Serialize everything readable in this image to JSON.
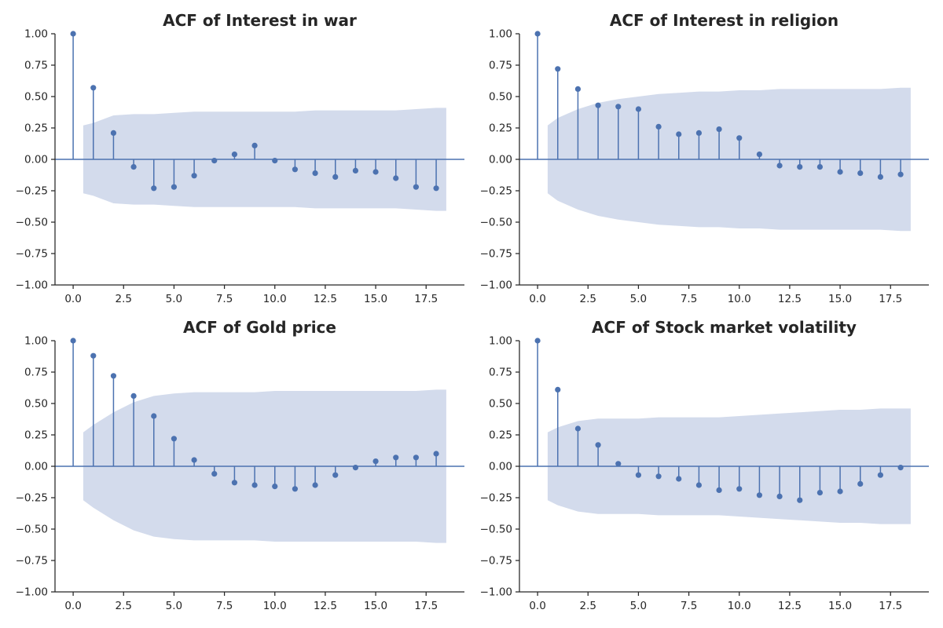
{
  "chart_data": [
    {
      "type": "stem",
      "title": "ACF of Interest in war",
      "xlabel": "",
      "ylabel": "",
      "xlim": [
        -0.9,
        19.4
      ],
      "ylim": [
        -1.0,
        1.0
      ],
      "xticks": [
        0.0,
        2.5,
        5.0,
        7.5,
        10.0,
        12.5,
        15.0,
        17.5
      ],
      "xtick_labels": [
        "0.0",
        "2.5",
        "5.0",
        "7.5",
        "10.0",
        "12.5",
        "15.0",
        "17.5"
      ],
      "yticks": [
        1.0,
        0.75,
        0.5,
        0.25,
        0.0,
        -0.25,
        -0.5,
        -0.75,
        -1.0
      ],
      "ytick_labels": [
        "1.00",
        "0.75",
        "0.50",
        "0.25",
        "0.00",
        "−0.25",
        "−0.50",
        "−0.75",
        "−1.00"
      ],
      "lags": [
        0,
        1,
        2,
        3,
        4,
        5,
        6,
        7,
        8,
        9,
        10,
        11,
        12,
        13,
        14,
        15,
        16,
        17,
        18
      ],
      "values": [
        1.0,
        0.57,
        0.21,
        -0.06,
        -0.23,
        -0.22,
        -0.13,
        -0.01,
        0.04,
        0.11,
        -0.01,
        -0.08,
        -0.11,
        -0.14,
        -0.09,
        -0.1,
        -0.15,
        -0.22,
        -0.23
      ],
      "conf_x": [
        0.5,
        1,
        2,
        3,
        4,
        5,
        6,
        7,
        8,
        9,
        10,
        11,
        12,
        13,
        14,
        15,
        16,
        17,
        18,
        18.5
      ],
      "conf_upper": [
        0.27,
        0.29,
        0.35,
        0.36,
        0.36,
        0.37,
        0.38,
        0.38,
        0.38,
        0.38,
        0.38,
        0.38,
        0.39,
        0.39,
        0.39,
        0.39,
        0.39,
        0.4,
        0.41,
        0.41
      ],
      "grid": false,
      "line_color": "#4c72b0",
      "band_color": "#d3dbec"
    },
    {
      "type": "stem",
      "title": "ACF of Interest in religion",
      "xlabel": "",
      "ylabel": "",
      "xlim": [
        -0.9,
        19.4
      ],
      "ylim": [
        -1.0,
        1.0
      ],
      "xticks": [
        0.0,
        2.5,
        5.0,
        7.5,
        10.0,
        12.5,
        15.0,
        17.5
      ],
      "xtick_labels": [
        "0.0",
        "2.5",
        "5.0",
        "7.5",
        "10.0",
        "12.5",
        "15.0",
        "17.5"
      ],
      "yticks": [
        1.0,
        0.75,
        0.5,
        0.25,
        0.0,
        -0.25,
        -0.5,
        -0.75,
        -1.0
      ],
      "ytick_labels": [
        "1.00",
        "0.75",
        "0.50",
        "0.25",
        "0.00",
        "−0.25",
        "−0.50",
        "−0.75",
        "−1.00"
      ],
      "lags": [
        0,
        1,
        2,
        3,
        4,
        5,
        6,
        7,
        8,
        9,
        10,
        11,
        12,
        13,
        14,
        15,
        16,
        17,
        18
      ],
      "values": [
        1.0,
        0.72,
        0.56,
        0.43,
        0.42,
        0.4,
        0.26,
        0.2,
        0.21,
        0.24,
        0.17,
        0.04,
        -0.05,
        -0.06,
        -0.06,
        -0.1,
        -0.11,
        -0.14,
        -0.12
      ],
      "conf_x": [
        0.5,
        1,
        2,
        3,
        4,
        5,
        6,
        7,
        8,
        9,
        10,
        11,
        12,
        13,
        14,
        15,
        16,
        17,
        18,
        18.5
      ],
      "conf_upper": [
        0.27,
        0.33,
        0.4,
        0.45,
        0.48,
        0.5,
        0.52,
        0.53,
        0.54,
        0.54,
        0.55,
        0.55,
        0.56,
        0.56,
        0.56,
        0.56,
        0.56,
        0.56,
        0.57,
        0.57
      ],
      "grid": false,
      "line_color": "#4c72b0",
      "band_color": "#d3dbec"
    },
    {
      "type": "stem",
      "title": "ACF of Gold price",
      "xlabel": "",
      "ylabel": "",
      "xlim": [
        -0.9,
        19.4
      ],
      "ylim": [
        -1.0,
        1.0
      ],
      "xticks": [
        0.0,
        2.5,
        5.0,
        7.5,
        10.0,
        12.5,
        15.0,
        17.5
      ],
      "xtick_labels": [
        "0.0",
        "2.5",
        "5.0",
        "7.5",
        "10.0",
        "12.5",
        "15.0",
        "17.5"
      ],
      "yticks": [
        1.0,
        0.75,
        0.5,
        0.25,
        0.0,
        -0.25,
        -0.5,
        -0.75,
        -1.0
      ],
      "ytick_labels": [
        "1.00",
        "0.75",
        "0.50",
        "0.25",
        "0.00",
        "−0.25",
        "−0.50",
        "−0.75",
        "−1.00"
      ],
      "lags": [
        0,
        1,
        2,
        3,
        4,
        5,
        6,
        7,
        8,
        9,
        10,
        11,
        12,
        13,
        14,
        15,
        16,
        17,
        18
      ],
      "values": [
        1.0,
        0.88,
        0.72,
        0.56,
        0.4,
        0.22,
        0.05,
        -0.06,
        -0.13,
        -0.15,
        -0.16,
        -0.18,
        -0.15,
        -0.07,
        -0.01,
        0.04,
        0.07,
        0.07,
        0.1
      ],
      "conf_x": [
        0.5,
        1,
        2,
        3,
        4,
        5,
        6,
        7,
        8,
        9,
        10,
        11,
        12,
        13,
        14,
        15,
        16,
        17,
        18,
        18.5
      ],
      "conf_upper": [
        0.27,
        0.33,
        0.43,
        0.51,
        0.56,
        0.58,
        0.59,
        0.59,
        0.59,
        0.59,
        0.6,
        0.6,
        0.6,
        0.6,
        0.6,
        0.6,
        0.6,
        0.6,
        0.61,
        0.61
      ],
      "grid": false,
      "line_color": "#4c72b0",
      "band_color": "#d3dbec"
    },
    {
      "type": "stem",
      "title": "ACF of Stock market volatility",
      "xlabel": "",
      "ylabel": "",
      "xlim": [
        -0.9,
        19.4
      ],
      "ylim": [
        -1.0,
        1.0
      ],
      "xticks": [
        0.0,
        2.5,
        5.0,
        7.5,
        10.0,
        12.5,
        15.0,
        17.5
      ],
      "xtick_labels": [
        "0.0",
        "2.5",
        "5.0",
        "7.5",
        "10.0",
        "12.5",
        "15.0",
        "17.5"
      ],
      "yticks": [
        1.0,
        0.75,
        0.5,
        0.25,
        0.0,
        -0.25,
        -0.5,
        -0.75,
        -1.0
      ],
      "ytick_labels": [
        "1.00",
        "0.75",
        "0.50",
        "0.25",
        "0.00",
        "−0.25",
        "−0.50",
        "−0.75",
        "−1.00"
      ],
      "lags": [
        0,
        1,
        2,
        3,
        4,
        5,
        6,
        7,
        8,
        9,
        10,
        11,
        12,
        13,
        14,
        15,
        16,
        17,
        18
      ],
      "values": [
        1.0,
        0.61,
        0.3,
        0.17,
        0.02,
        -0.07,
        -0.08,
        -0.1,
        -0.15,
        -0.19,
        -0.18,
        -0.23,
        -0.24,
        -0.27,
        -0.21,
        -0.2,
        -0.14,
        -0.07,
        -0.01
      ],
      "conf_x": [
        0.5,
        1,
        2,
        3,
        4,
        5,
        6,
        7,
        8,
        9,
        10,
        11,
        12,
        13,
        14,
        15,
        16,
        17,
        18,
        18.5
      ],
      "conf_upper": [
        0.27,
        0.31,
        0.36,
        0.38,
        0.38,
        0.38,
        0.39,
        0.39,
        0.39,
        0.39,
        0.4,
        0.41,
        0.42,
        0.43,
        0.44,
        0.45,
        0.45,
        0.46,
        0.46,
        0.46
      ],
      "grid": false,
      "line_color": "#4c72b0",
      "band_color": "#d3dbec"
    }
  ]
}
